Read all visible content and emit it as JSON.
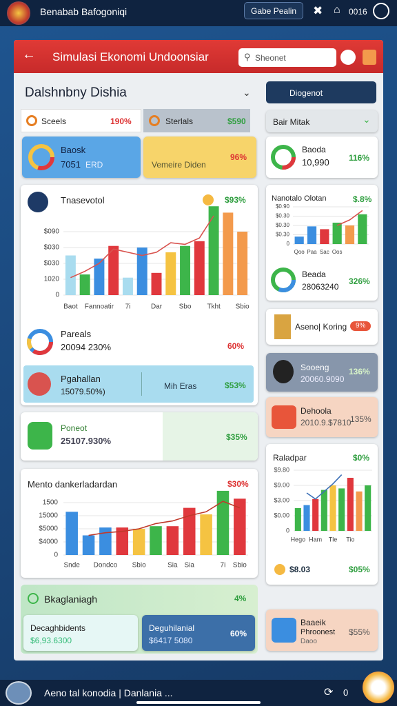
{
  "top_bar": {
    "title": "Benabab Bafogoniqi",
    "button": "Gabe Pealin",
    "counter": "0016"
  },
  "header": {
    "title": "Simulasi Ekonomi Undoonsiar",
    "search": "Sheonet"
  },
  "dashboard": {
    "heading": "Dalshnbny Dishia",
    "tabs": [
      {
        "label": "Sceels",
        "value": "190%"
      },
      {
        "label": "Sterlals",
        "value": "$590"
      }
    ],
    "cards": [
      {
        "title": "Baosk",
        "value": "7051",
        "note": "ERD"
      },
      {
        "title": "Vemeire Diden",
        "value": "96%"
      },
      {
        "title": "Pareals",
        "value": "20094 230%",
        "change": "60%"
      },
      {
        "title": "Pgahallan",
        "value": "15079.50%)",
        "note": "Mih Eras",
        "change": "$53%"
      },
      {
        "title": "Poneot",
        "value": "25107.930%",
        "change": "$35%"
      }
    ],
    "section": {
      "title": "Bkaglaniagh",
      "value": "4%",
      "cards": [
        {
          "title": "Decaghbidents",
          "value": "$6,93.6300"
        },
        {
          "title": "Deguhilanial",
          "value": "$6417 5080",
          "change": "60%"
        }
      ]
    }
  },
  "sidebar": {
    "button": "Diogenot",
    "filter": "Bair Mitak",
    "cards": [
      {
        "title": "Baoda",
        "value": "10,990",
        "change": "116%"
      },
      {
        "title": "Beada",
        "value": "28063240",
        "change": "326%"
      },
      {
        "title": "Aseno| Koring",
        "change": "9%"
      },
      {
        "title": "Sooeng",
        "value": "20060.9090",
        "change": "136%"
      },
      {
        "title": "Dehoola",
        "value": "2010.9.$7810",
        "change": "135%"
      },
      {
        "title": "Baaeik",
        "value": "Phroonest",
        "note": "Daoo",
        "change": "$55%"
      }
    ],
    "stats": [
      "$8.03",
      "$05%"
    ]
  },
  "charts": [
    {
      "type": "bar",
      "title": "Tnasevotol",
      "value_label": "$93%",
      "categories": [
        "Baot",
        null,
        "Fannoatir",
        null,
        "7i",
        null,
        "Dar",
        null,
        "Sbo",
        null,
        "Tkht",
        null,
        "Sbio"
      ],
      "values": [
        2.5,
        1.3,
        2.3,
        3.1,
        1.1,
        3.0,
        1.4,
        2.7,
        3.1,
        3.4,
        5.6,
        5.2,
        4.0
      ],
      "colors": [
        "#a9dcef",
        "#3db54a",
        "#3b8ee0",
        "#e0383d",
        "#a9dcef",
        "#3b8ee0",
        "#e0383d",
        "#f5c342",
        "#3db54a",
        "#e0383d",
        "#3db54a",
        "#f39a4c",
        "#f39a4c"
      ],
      "line": [
        1.1,
        1.5,
        2.0,
        2.9,
        2.7,
        2.5,
        2.7,
        3.3,
        3.2,
        3.6,
        5.0,
        null,
        null
      ],
      "line_color": "#d9534f",
      "ylim": [
        0,
        6
      ],
      "yticks": [
        0,
        {
          "value": 1,
          "label": "1020"
        },
        {
          "value": 2,
          "label": "$030"
        },
        {
          "value": 3,
          "label": "$030"
        },
        {
          "value": 4,
          "label": "$090"
        }
      ]
    },
    {
      "type": "bar",
      "title": "Mento dankerladardan",
      "value_label": "$30%",
      "categories": [
        "Snde",
        null,
        "Dondco",
        null,
        "Sbio",
        null,
        "Sia",
        "Sia",
        null,
        "7i",
        "Sbio"
      ],
      "values": [
        3.3,
        1.5,
        2.1,
        2.1,
        2.0,
        2.2,
        2.2,
        3.6,
        3.1,
        4.9,
        4.3
      ],
      "colors": [
        "#3b8ee0",
        "#3b8ee0",
        "#3b8ee0",
        "#e0383d",
        "#f5c342",
        "#3db54a",
        "#e0383d",
        "#e0383d",
        "#f5c342",
        "#3db54a",
        "#e0383d"
      ],
      "line": [
        null,
        1.5,
        1.7,
        1.8,
        2.0,
        2.4,
        2.6,
        3.0,
        3.3,
        4.1,
        3.6
      ],
      "line_color": "#c0392b",
      "ylim": [
        0,
        5
      ],
      "yticks": [
        0,
        {
          "value": 1,
          "label": "$4000"
        },
        {
          "value": 2,
          "label": "$5000"
        },
        {
          "value": 3,
          "label": "15000"
        },
        {
          "value": 4,
          "label": "1500"
        }
      ]
    },
    {
      "type": "bar",
      "title": "Raladpar",
      "value_label": "$0%",
      "categories": [
        "Hego",
        null,
        "Ham",
        null,
        "Tle",
        null,
        "Tio",
        null,
        null
      ],
      "values": [
        1.5,
        1.7,
        2.1,
        2.7,
        3.0,
        2.8,
        3.5,
        2.6,
        3.0
      ],
      "colors": [
        "#3db54a",
        "#3b8ee0",
        "#e0383d",
        "#3db54a",
        "#f5c342",
        "#3db54a",
        "#e0383d",
        "#f39a4c",
        "#3db54a"
      ],
      "line": [
        null,
        2.5,
        2.1,
        2.6,
        3.1,
        3.7,
        null,
        null,
        null
      ],
      "line_color": "#3b6fb6",
      "ylim": [
        0,
        4
      ],
      "yticks": [
        0,
        {
          "value": 1,
          "label": "$0.00"
        },
        {
          "value": 2,
          "label": "$3.00"
        },
        {
          "value": 3,
          "label": "$9.00"
        },
        {
          "value": 4,
          "label": "$9.80"
        }
      ]
    },
    {
      "type": "bar",
      "title": "Nanotalo Olotan",
      "value_label": "$.8%",
      "categories": [
        "Qoo",
        "Paa",
        "Sac",
        "Oos",
        null,
        null
      ],
      "values": [
        0.8,
        1.9,
        1.6,
        2.3,
        2.0,
        3.2
      ],
      "colors": [
        "#3b8ee0",
        "#3b8ee0",
        "#e0383d",
        "#3db54a",
        "#f39a4c",
        "#3db54a"
      ],
      "line": [
        null,
        null,
        null,
        2.0,
        2.6,
        3.6
      ],
      "line_color": "#d9534f",
      "ylim": [
        0,
        4
      ],
      "yticks": [
        0,
        {
          "value": 1,
          "label": "$0.30"
        },
        {
          "value": 2,
          "label": "$0.30"
        },
        {
          "value": 3,
          "label": "$0.30"
        },
        {
          "value": 4,
          "label": "$0.90"
        }
      ]
    }
  ],
  "bottom_bar": {
    "text": "Aeno tal konodia | Danlania ...",
    "counter": "0"
  }
}
